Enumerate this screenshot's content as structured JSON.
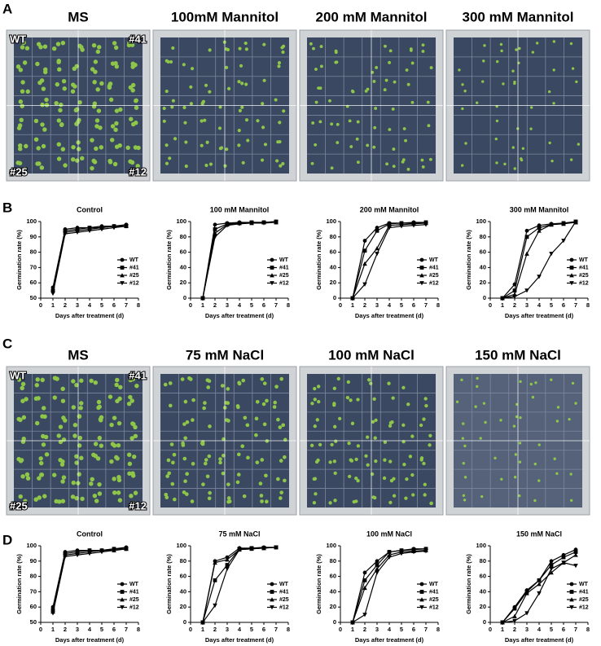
{
  "panel_labels": [
    "A",
    "B",
    "C",
    "D"
  ],
  "photo_rows": [
    {
      "titles": [
        "MS",
        "100mM Mannitol",
        "200 mM Mannitol",
        "300 mM Mannitol"
      ],
      "corner_labels": {
        "top_left": "WT",
        "top_right": "#41",
        "bottom_left": "#25",
        "bottom_right": "#12"
      }
    },
    {
      "titles": [
        "MS",
        "75 mM NaCl",
        "100 mM NaCl",
        "150 mM NaCl"
      ],
      "corner_labels": {
        "top_left": "WT",
        "top_right": "#41",
        "bottom_left": "#25",
        "bottom_right": "#12"
      }
    }
  ],
  "chart_data": [
    {
      "type": "line",
      "title": "Control",
      "xlabel": "Days after treatment (d)",
      "ylabel": "Germination rate (%)",
      "x": [
        1,
        2,
        3,
        4,
        5,
        6,
        7
      ],
      "xlim": [
        0,
        8
      ],
      "xticks": [
        0,
        1,
        2,
        3,
        4,
        5,
        6,
        7,
        8
      ],
      "ylim": [
        50,
        100
      ],
      "yticks": [
        50,
        60,
        70,
        80,
        90,
        100
      ],
      "legend": "right",
      "series": [
        {
          "name": "WT",
          "color": "#000000",
          "marker": "circle",
          "values": [
            57,
            95,
            96,
            96,
            97,
            97,
            98
          ]
        },
        {
          "name": "#41",
          "color": "#000000",
          "marker": "square",
          "values": [
            55,
            94,
            95,
            96,
            96,
            97,
            97
          ]
        },
        {
          "name": "#25",
          "color": "#000000",
          "marker": "triangle-up",
          "values": [
            56,
            93,
            94,
            95,
            96,
            97,
            97
          ]
        },
        {
          "name": "#12",
          "color": "#000000",
          "marker": "triangle-down",
          "values": [
            53,
            92,
            93,
            94,
            95,
            96,
            97
          ]
        }
      ]
    },
    {
      "type": "line",
      "title": "100 mM Mannitol",
      "xlabel": "Days after treatment (d)",
      "ylabel": "Germination rate (%)",
      "x": [
        1,
        2,
        3,
        4,
        5,
        6,
        7
      ],
      "xlim": [
        0,
        8
      ],
      "xticks": [
        0,
        1,
        2,
        3,
        4,
        5,
        6,
        7,
        8
      ],
      "ylim": [
        0,
        100
      ],
      "yticks": [
        0,
        20,
        40,
        60,
        80,
        100
      ],
      "legend": "right",
      "series": [
        {
          "name": "WT",
          "color": "#000000",
          "marker": "circle",
          "values": [
            0,
            96,
            98,
            99,
            99,
            99,
            100
          ]
        },
        {
          "name": "#41",
          "color": "#000000",
          "marker": "square",
          "values": [
            0,
            90,
            97,
            98,
            99,
            99,
            100
          ]
        },
        {
          "name": "#25",
          "color": "#000000",
          "marker": "triangle-up",
          "values": [
            0,
            85,
            96,
            98,
            98,
            99,
            99
          ]
        },
        {
          "name": "#12",
          "color": "#000000",
          "marker": "triangle-down",
          "values": [
            0,
            80,
            95,
            97,
            98,
            98,
            99
          ]
        }
      ]
    },
    {
      "type": "line",
      "title": "200 mM Mannitol",
      "xlabel": "Days after treatment (d)",
      "ylabel": "Germination rate (%)",
      "x": [
        1,
        2,
        3,
        4,
        5,
        6,
        7
      ],
      "xlim": [
        0,
        8
      ],
      "xticks": [
        0,
        1,
        2,
        3,
        4,
        5,
        6,
        7,
        8
      ],
      "ylim": [
        0,
        100
      ],
      "yticks": [
        0,
        20,
        40,
        60,
        80,
        100
      ],
      "legend": "right",
      "series": [
        {
          "name": "WT",
          "color": "#000000",
          "marker": "circle",
          "values": [
            0,
            75,
            92,
            98,
            98,
            99,
            99
          ]
        },
        {
          "name": "#41",
          "color": "#000000",
          "marker": "square",
          "values": [
            0,
            62,
            88,
            97,
            98,
            98,
            99
          ]
        },
        {
          "name": "#25",
          "color": "#000000",
          "marker": "triangle-up",
          "values": [
            0,
            45,
            65,
            95,
            96,
            97,
            98
          ]
        },
        {
          "name": "#12",
          "color": "#000000",
          "marker": "triangle-down",
          "values": [
            0,
            18,
            58,
            92,
            94,
            95,
            96
          ]
        }
      ]
    },
    {
      "type": "line",
      "title": "300 mM Mannitol",
      "xlabel": "Days after treatment (d)",
      "ylabel": "Germination rate (%)",
      "x": [
        1,
        2,
        3,
        4,
        5,
        6,
        7
      ],
      "xlim": [
        0,
        8
      ],
      "xticks": [
        0,
        1,
        2,
        3,
        4,
        5,
        6,
        7,
        8
      ],
      "ylim": [
        0,
        100
      ],
      "yticks": [
        0,
        20,
        40,
        60,
        80,
        100
      ],
      "legend": "right",
      "series": [
        {
          "name": "WT",
          "color": "#000000",
          "marker": "circle",
          "values": [
            0,
            18,
            88,
            95,
            97,
            98,
            100
          ]
        },
        {
          "name": "#41",
          "color": "#000000",
          "marker": "square",
          "values": [
            0,
            10,
            80,
            92,
            96,
            98,
            99
          ]
        },
        {
          "name": "#25",
          "color": "#000000",
          "marker": "triangle-up",
          "values": [
            0,
            5,
            58,
            88,
            96,
            97,
            99
          ]
        },
        {
          "name": "#12",
          "color": "#000000",
          "marker": "triangle-down",
          "values": [
            0,
            2,
            10,
            28,
            58,
            75,
            100
          ]
        }
      ]
    },
    {
      "type": "line",
      "title": "Control",
      "xlabel": "Days after treatment (d)",
      "ylabel": "Germination rate (%)",
      "x": [
        1,
        2,
        3,
        4,
        5,
        6,
        7
      ],
      "xlim": [
        0,
        8
      ],
      "xticks": [
        0,
        1,
        2,
        3,
        4,
        5,
        6,
        7,
        8
      ],
      "ylim": [
        50,
        100
      ],
      "yticks": [
        50,
        60,
        70,
        80,
        90,
        100
      ],
      "legend": "right",
      "series": [
        {
          "name": "WT",
          "color": "#000000",
          "marker": "circle",
          "values": [
            60,
            96,
            97,
            97,
            97,
            98,
            99
          ]
        },
        {
          "name": "#41",
          "color": "#000000",
          "marker": "square",
          "values": [
            58,
            95,
            96,
            97,
            97,
            98,
            98
          ]
        },
        {
          "name": "#25",
          "color": "#000000",
          "marker": "triangle-up",
          "values": [
            57,
            94,
            95,
            96,
            97,
            97,
            98
          ]
        },
        {
          "name": "#12",
          "color": "#000000",
          "marker": "triangle-down",
          "values": [
            56,
            93,
            94,
            95,
            96,
            97,
            98
          ]
        }
      ]
    },
    {
      "type": "line",
      "title": "75 mM NaCl",
      "xlabel": "Days after treatment (d)",
      "ylabel": "Germination rate (%)",
      "x": [
        1,
        2,
        3,
        4,
        5,
        6,
        7
      ],
      "xlim": [
        0,
        8
      ],
      "xticks": [
        0,
        1,
        2,
        3,
        4,
        5,
        6,
        7,
        8
      ],
      "ylim": [
        0,
        100
      ],
      "yticks": [
        0,
        20,
        40,
        60,
        80,
        100
      ],
      "legend": "right",
      "series": [
        {
          "name": "WT",
          "color": "#000000",
          "marker": "circle",
          "values": [
            0,
            80,
            85,
            97,
            97,
            98,
            98
          ]
        },
        {
          "name": "#41",
          "color": "#000000",
          "marker": "square",
          "values": [
            0,
            55,
            75,
            96,
            97,
            97,
            98
          ]
        },
        {
          "name": "#25",
          "color": "#000000",
          "marker": "triangle-up",
          "values": [
            0,
            78,
            82,
            95,
            96,
            97,
            98
          ]
        },
        {
          "name": "#12",
          "color": "#000000",
          "marker": "triangle-down",
          "values": [
            0,
            22,
            70,
            95,
            96,
            97,
            98
          ]
        }
      ]
    },
    {
      "type": "line",
      "title": "100 mM NaCl",
      "xlabel": "Days after treatment (d)",
      "ylabel": "Germination rate (%)",
      "x": [
        1,
        2,
        3,
        4,
        5,
        6,
        7
      ],
      "xlim": [
        0,
        8
      ],
      "xticks": [
        0,
        1,
        2,
        3,
        4,
        5,
        6,
        7,
        8
      ],
      "ylim": [
        0,
        100
      ],
      "yticks": [
        0,
        20,
        40,
        60,
        80,
        100
      ],
      "legend": "right",
      "series": [
        {
          "name": "WT",
          "color": "#000000",
          "marker": "circle",
          "values": [
            0,
            65,
            80,
            92,
            94,
            96,
            96
          ]
        },
        {
          "name": "#41",
          "color": "#000000",
          "marker": "square",
          "values": [
            0,
            55,
            75,
            92,
            94,
            95,
            96
          ]
        },
        {
          "name": "#25",
          "color": "#000000",
          "marker": "triangle-up",
          "values": [
            0,
            45,
            70,
            88,
            92,
            93,
            94
          ]
        },
        {
          "name": "#12",
          "color": "#000000",
          "marker": "triangle-down",
          "values": [
            0,
            10,
            65,
            85,
            90,
            92,
            93
          ]
        }
      ]
    },
    {
      "type": "line",
      "title": "150 mM NaCl",
      "xlabel": "Days after treatment (d)",
      "ylabel": "Germination rate (%)",
      "x": [
        1,
        2,
        3,
        4,
        5,
        6,
        7
      ],
      "xlim": [
        0,
        8
      ],
      "xticks": [
        0,
        1,
        2,
        3,
        4,
        5,
        6,
        7,
        8
      ],
      "ylim": [
        0,
        100
      ],
      "yticks": [
        0,
        20,
        40,
        60,
        80,
        100
      ],
      "legend": "right",
      "series": [
        {
          "name": "WT",
          "color": "#000000",
          "marker": "circle",
          "values": [
            0,
            20,
            42,
            55,
            80,
            88,
            95
          ]
        },
        {
          "name": "#41",
          "color": "#000000",
          "marker": "square",
          "values": [
            0,
            18,
            40,
            55,
            75,
            85,
            92
          ]
        },
        {
          "name": "#25",
          "color": "#000000",
          "marker": "triangle-up",
          "values": [
            0,
            8,
            38,
            50,
            65,
            78,
            88
          ]
        },
        {
          "name": "#12",
          "color": "#000000",
          "marker": "triangle-down",
          "values": [
            0,
            2,
            12,
            38,
            70,
            78,
            74
          ]
        }
      ]
    }
  ]
}
